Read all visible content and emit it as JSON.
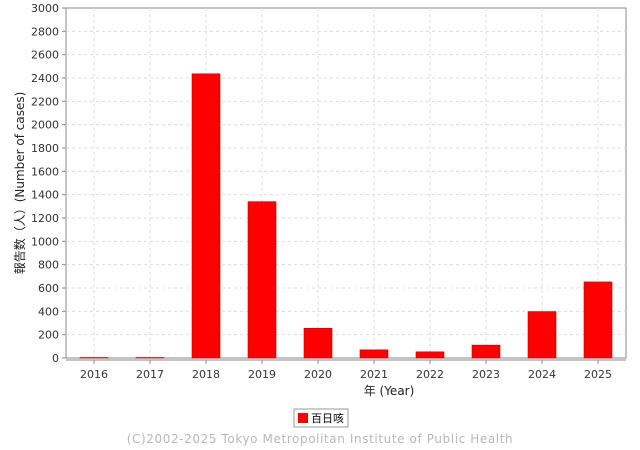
{
  "chart_data": {
    "type": "bar",
    "categories": [
      "2016",
      "2017",
      "2018",
      "2019",
      "2020",
      "2021",
      "2022",
      "2023",
      "2024",
      "2025"
    ],
    "series": [
      {
        "name": "百日咳",
        "values": [
          0,
          0,
          2436,
          1340,
          255,
          70,
          53,
          110,
          398,
          652
        ]
      }
    ],
    "xlabel": "年 (Year)",
    "ylabel": "報告数（人）(Number of cases)",
    "ylim": [
      0,
      3000
    ],
    "yticks": [
      0,
      200,
      400,
      600,
      800,
      1000,
      1200,
      1400,
      1600,
      1800,
      2000,
      2200,
      2400,
      2600,
      2800,
      3000
    ],
    "grid": true,
    "legend": "bottom-center",
    "colors": {
      "bar": "#ff0000",
      "bar_edge": "#c00000",
      "grid": "#dddddd",
      "axis": "#888888"
    }
  },
  "footer": {
    "copyright": "(C)2002-2025 Tokyo Metropolitan Institute of Public Health"
  }
}
